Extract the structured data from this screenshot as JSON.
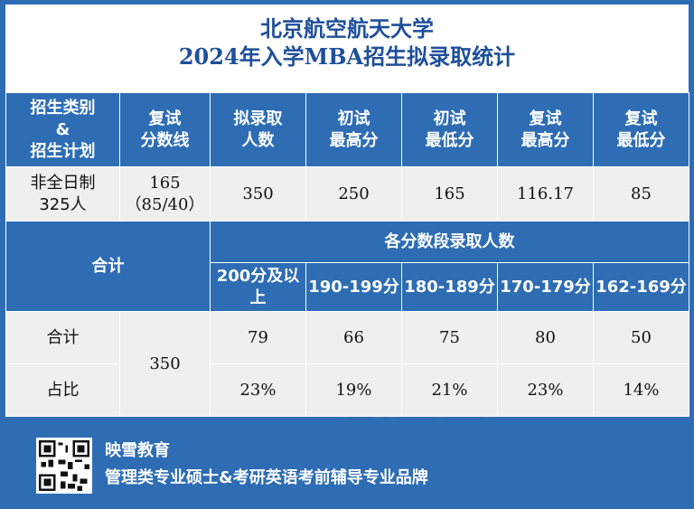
{
  "title": {
    "line1": "北京航空航天大学",
    "line2": "2024年入学MBA招生拟录取统计"
  },
  "header_row": {
    "category": [
      "招生类别",
      "&",
      "招生计划"
    ],
    "retest_line": [
      "复试",
      "分数线"
    ],
    "admit_count": [
      "拟录取",
      "人数"
    ],
    "initial_max": [
      "初试",
      "最高分"
    ],
    "initial_min": [
      "初试",
      "最低分"
    ],
    "retest_max": [
      "复试",
      "最高分"
    ],
    "retest_min": [
      "复试",
      "最低分"
    ]
  },
  "data_row": {
    "category": [
      "非全日制",
      "325人"
    ],
    "retest_line": [
      "165",
      "（85/40）"
    ],
    "admit_count": "350",
    "initial_max": "250",
    "initial_min": "165",
    "retest_max": "116.17",
    "retest_min": "85"
  },
  "band_section": {
    "total_label": "合计",
    "band_title": "各分数段录取人数",
    "bands": [
      "200分及以上",
      "190-199分",
      "180-189分",
      "170-179分",
      "162-169分"
    ]
  },
  "summary": {
    "total_admitted": "350",
    "count_row": {
      "label": "合计",
      "values": [
        "79",
        "66",
        "75",
        "80",
        "50"
      ]
    },
    "share_row": {
      "label": "占比",
      "values": [
        "23%",
        "19%",
        "21%",
        "23%",
        "14%"
      ]
    }
  },
  "watermark": {
    "text_a": "映雪",
    "text_b": "教育"
  },
  "footer": {
    "brand": "映雪教育",
    "slogan": "管理类专业硕士&考研英语考前辅导专业品牌",
    "qr_icon": "qr-code-icon"
  },
  "colors": {
    "accent": "#2e6db4",
    "cell_bg": "#efefef",
    "title_text": "#1f4f9a"
  }
}
